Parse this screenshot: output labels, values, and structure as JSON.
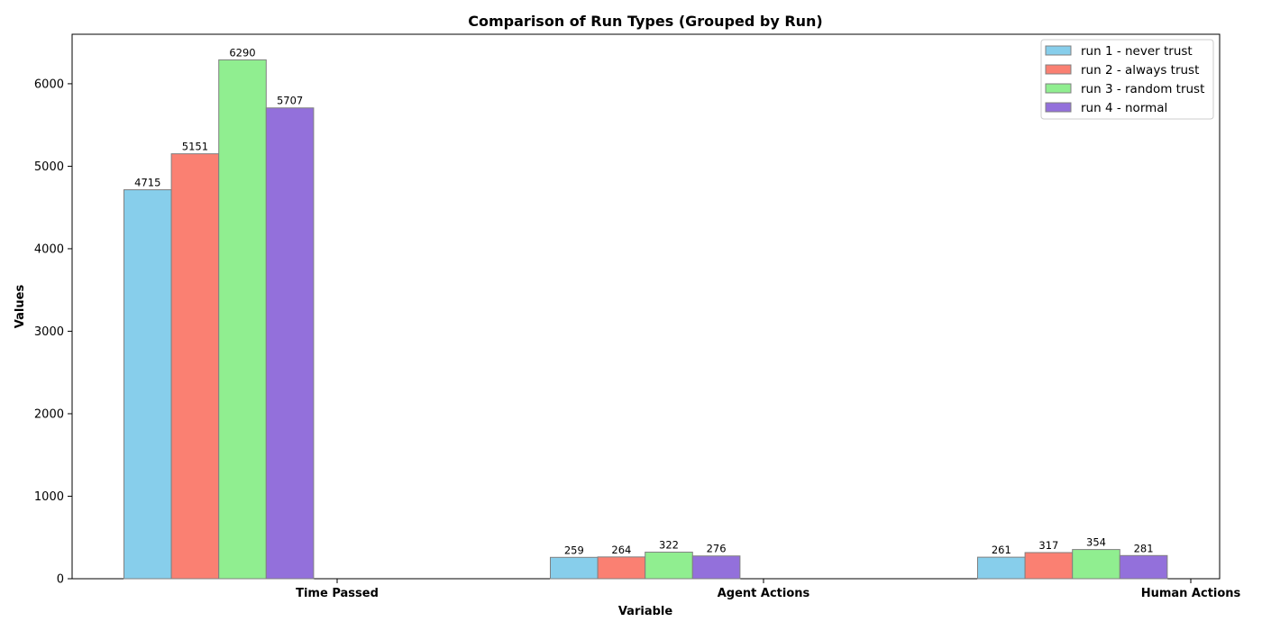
{
  "chart_data": {
    "type": "bar",
    "title": "Comparison of Run Types (Grouped by Run)",
    "xlabel": "Variable",
    "ylabel": "Values",
    "ylim": [
      0,
      6600
    ],
    "yticks": [
      0,
      1000,
      2000,
      3000,
      4000,
      5000,
      6000
    ],
    "categories": [
      "Time Passed",
      "Agent Actions",
      "Human Actions"
    ],
    "series": [
      {
        "name": "run 1 - never trust",
        "color": "#87ceeb",
        "values": [
          4715,
          259,
          261
        ]
      },
      {
        "name": "run 2 - always trust",
        "color": "#fa8072",
        "values": [
          5151,
          264,
          317
        ]
      },
      {
        "name": "run 3 - random trust",
        "color": "#90ee90",
        "values": [
          6290,
          322,
          354
        ]
      },
      {
        "name": "run 4 - normal",
        "color": "#9370db",
        "values": [
          5707,
          276,
          281
        ]
      }
    ],
    "legend_position": "top-right",
    "grid": false,
    "bar_edge_color": "#808080"
  }
}
